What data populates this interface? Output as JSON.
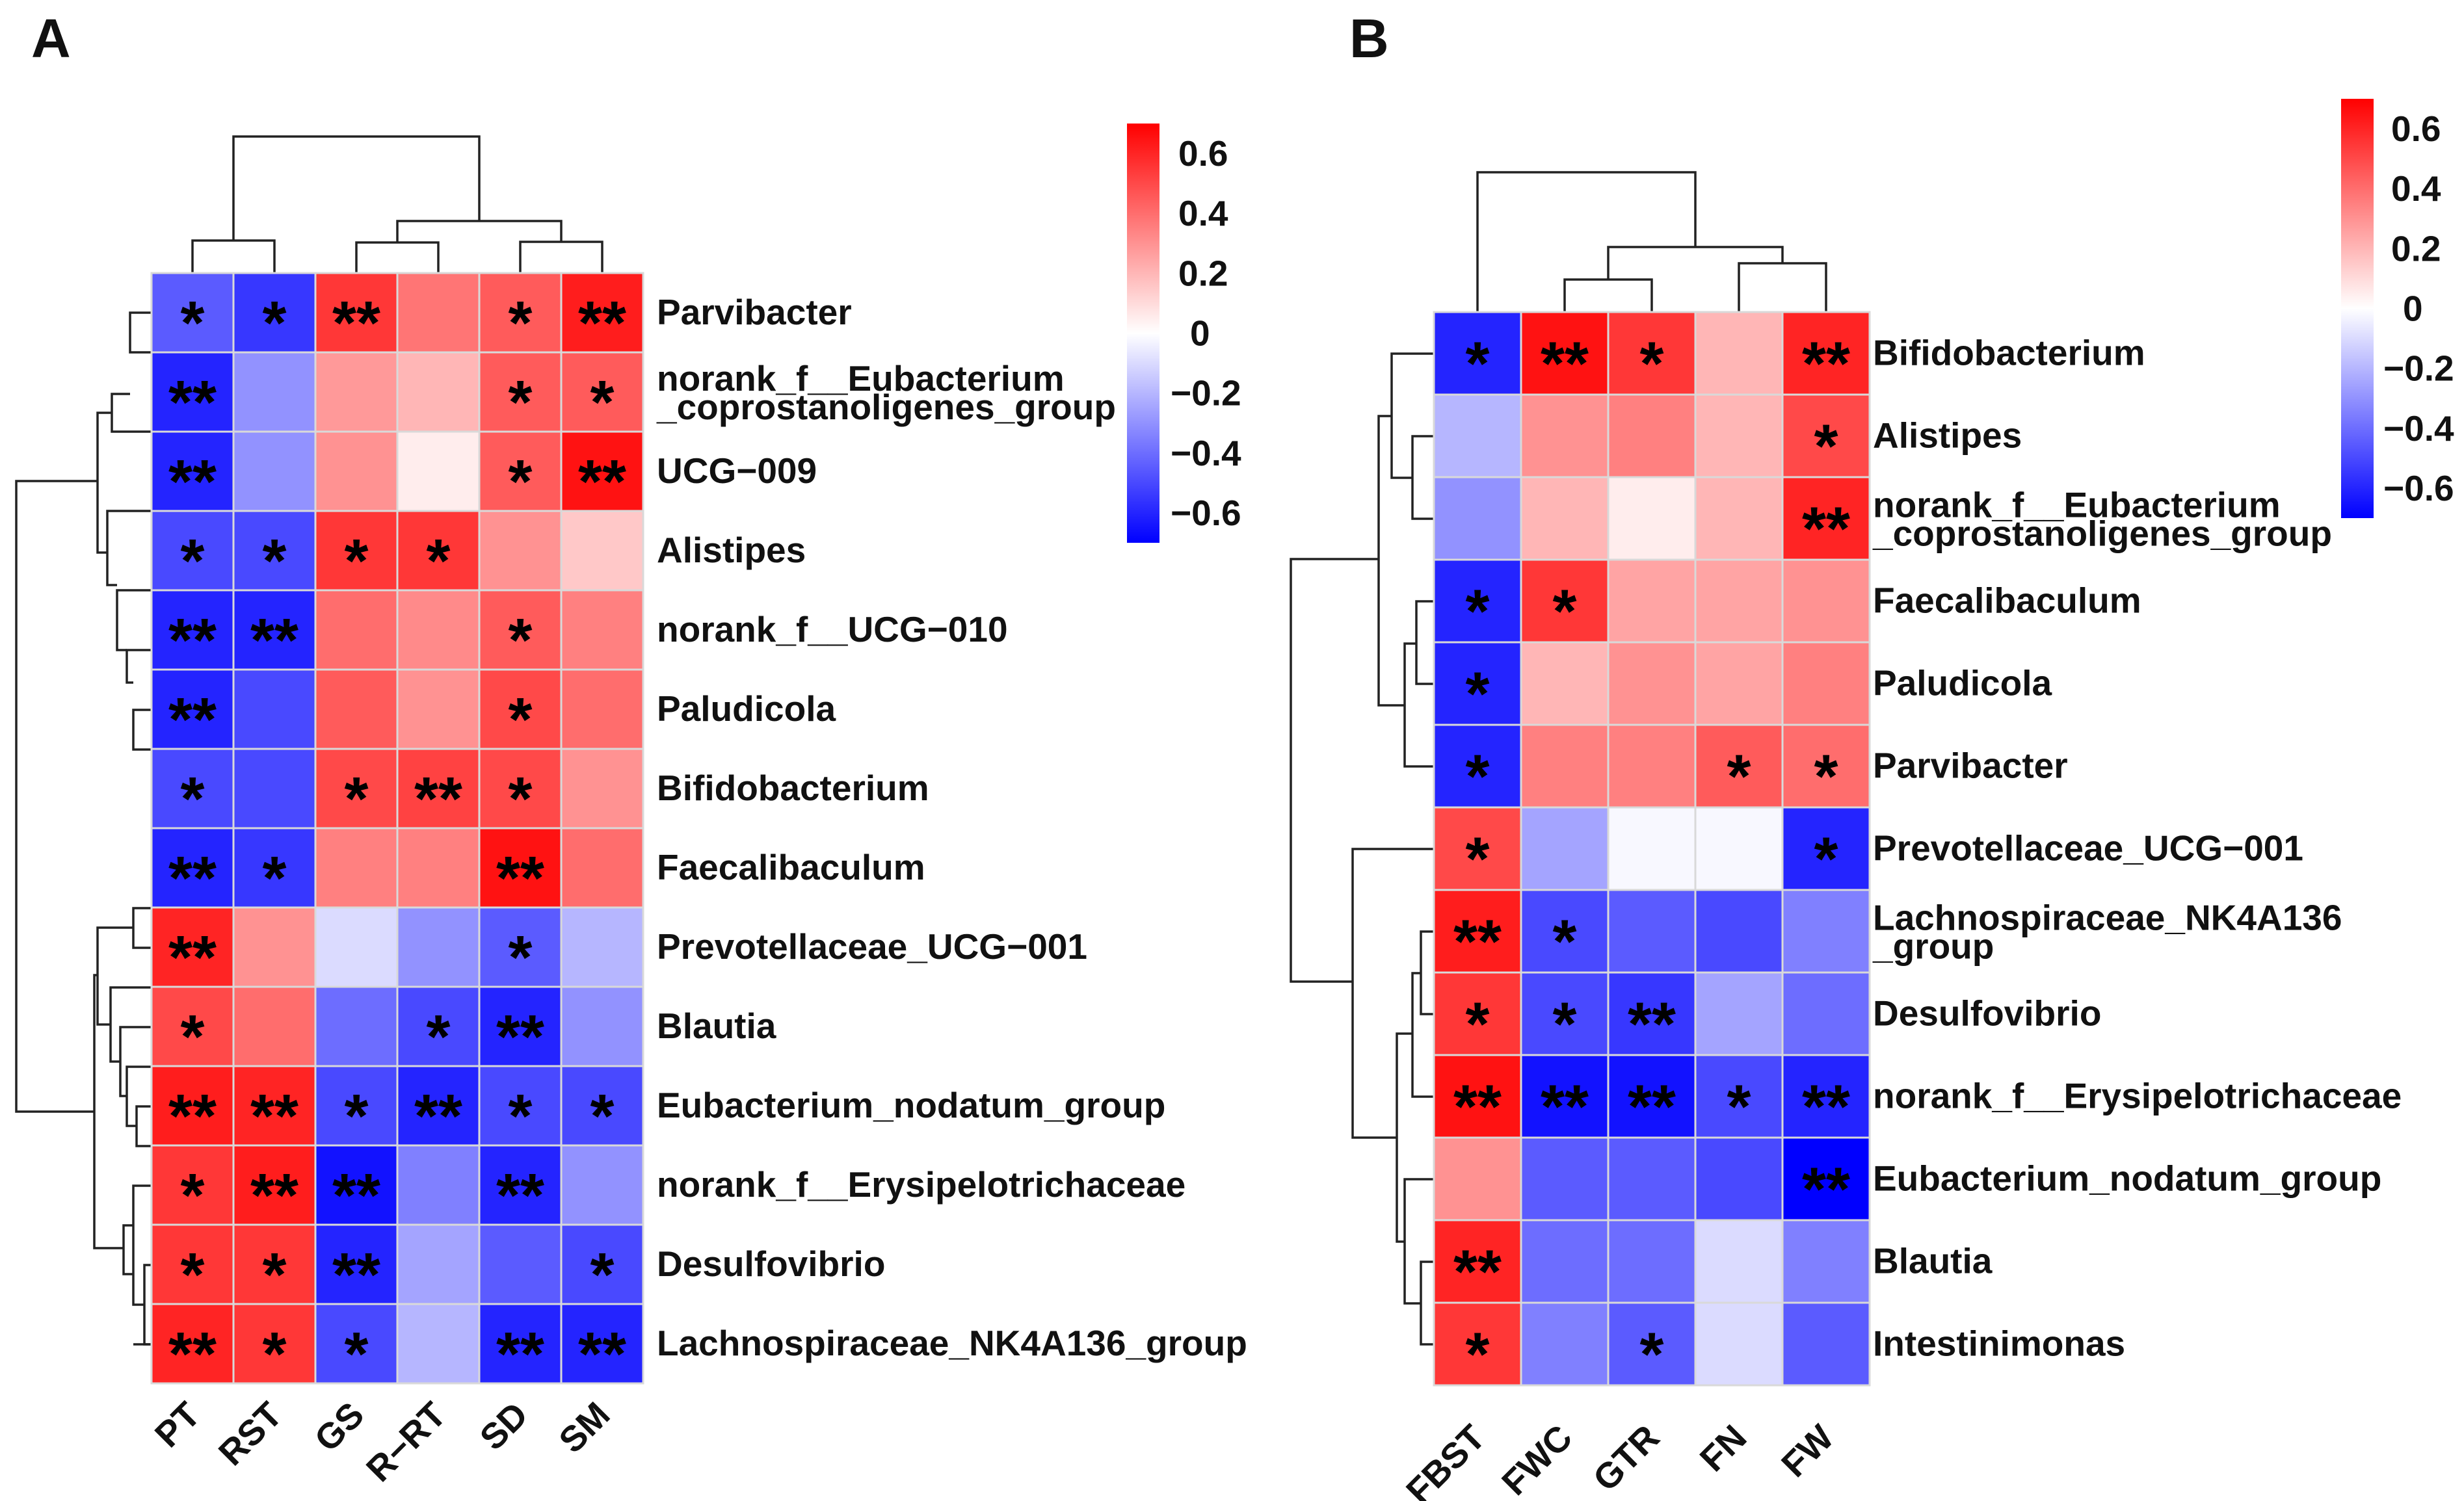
{
  "chart_data": [
    {
      "panel": "A",
      "type": "heatmap",
      "columns": [
        "PT",
        "RST",
        "GS",
        "R-RT",
        "SD",
        "SM"
      ],
      "rows": [
        {
          "label": [
            "Parvibacter"
          ],
          "values": [
            -0.45,
            -0.55,
            0.55,
            0.38,
            0.45,
            0.62
          ],
          "stars": [
            "*",
            "*",
            "**",
            "",
            "*",
            "**"
          ]
        },
        {
          "label": [
            "norank_f__Eubacterium",
            "_coprostanoligenes_group"
          ],
          "values": [
            -0.6,
            -0.3,
            0.28,
            0.2,
            0.45,
            0.45
          ],
          "stars": [
            "**",
            "",
            "",
            "",
            "*",
            "*"
          ]
        },
        {
          "label": [
            "UCG-009"
          ],
          "values": [
            -0.6,
            -0.3,
            0.3,
            0.05,
            0.45,
            0.65
          ],
          "stars": [
            "**",
            "",
            "",
            "",
            "*",
            "**"
          ]
        },
        {
          "label": [
            "Alistipes"
          ],
          "values": [
            -0.5,
            -0.5,
            0.55,
            0.55,
            0.3,
            0.15
          ],
          "stars": [
            "*",
            "*",
            "*",
            "*",
            "",
            ""
          ]
        },
        {
          "label": [
            "norank_f__UCG-010"
          ],
          "values": [
            -0.6,
            -0.6,
            0.4,
            0.32,
            0.45,
            0.35
          ],
          "stars": [
            "**",
            "**",
            "",
            "",
            "*",
            ""
          ]
        },
        {
          "label": [
            "Paludicola"
          ],
          "values": [
            -0.6,
            -0.5,
            0.45,
            0.3,
            0.5,
            0.4
          ],
          "stars": [
            "**",
            "",
            "",
            "",
            "*",
            ""
          ]
        },
        {
          "label": [
            "Bifidobacterium"
          ],
          "values": [
            -0.5,
            -0.5,
            0.5,
            0.52,
            0.5,
            0.3
          ],
          "stars": [
            "*",
            "",
            "*",
            "**",
            "*",
            ""
          ]
        },
        {
          "label": [
            "Faecalibaculum"
          ],
          "values": [
            -0.6,
            -0.55,
            0.35,
            0.35,
            0.65,
            0.4
          ],
          "stars": [
            "**",
            "*",
            "",
            "",
            "**",
            ""
          ]
        },
        {
          "label": [
            "Prevotellaceae_UCG-001"
          ],
          "values": [
            0.6,
            0.3,
            -0.1,
            -0.3,
            -0.45,
            -0.2
          ],
          "stars": [
            "**",
            "",
            "",
            "",
            "*",
            ""
          ]
        },
        {
          "label": [
            "Blautia"
          ],
          "values": [
            0.5,
            0.4,
            -0.4,
            -0.5,
            -0.6,
            -0.3
          ],
          "stars": [
            "*",
            "",
            "",
            "*",
            "**",
            ""
          ]
        },
        {
          "label": [
            "Eubacterium_nodatum_group"
          ],
          "values": [
            0.62,
            0.6,
            -0.5,
            -0.6,
            -0.5,
            -0.5
          ],
          "stars": [
            "**",
            "**",
            "*",
            "**",
            "*",
            "*"
          ]
        },
        {
          "label": [
            "norank_f__Erysipelotrichaceae"
          ],
          "values": [
            0.55,
            0.62,
            -0.65,
            -0.35,
            -0.6,
            -0.3
          ],
          "stars": [
            "*",
            "**",
            "**",
            "",
            "**",
            ""
          ]
        },
        {
          "label": [
            "Desulfovibrio"
          ],
          "values": [
            0.55,
            0.55,
            -0.6,
            -0.25,
            -0.45,
            -0.5
          ],
          "stars": [
            "*",
            "*",
            "**",
            "",
            "",
            "*"
          ]
        },
        {
          "label": [
            "Lachnospiraceae_NK4A136_group"
          ],
          "values": [
            0.6,
            0.55,
            -0.5,
            -0.2,
            -0.6,
            -0.6
          ],
          "stars": [
            "**",
            "*",
            "*",
            "",
            "**",
            "**"
          ]
        }
      ],
      "colorbar": {
        "min": -0.7,
        "max": 0.7,
        "ticks": [
          "0.6",
          "0.4",
          "0.2",
          "0",
          "−0.2",
          "−0.4",
          "−0.6"
        ]
      }
    },
    {
      "panel": "B",
      "type": "heatmap",
      "columns": [
        "FBST",
        "FWC",
        "GTR",
        "FN",
        "FW"
      ],
      "rows": [
        {
          "label": [
            "Bifidobacterium"
          ],
          "values": [
            -0.6,
            0.65,
            0.55,
            0.2,
            0.6
          ],
          "stars": [
            "*",
            "**",
            "*",
            "",
            "**"
          ]
        },
        {
          "label": [
            "Alistipes"
          ],
          "values": [
            -0.2,
            0.3,
            0.35,
            0.2,
            0.5
          ],
          "stars": [
            "",
            "",
            "",
            "",
            "*"
          ]
        },
        {
          "label": [
            "norank_f__Eubacterium",
            "_coprostanoligenes_group"
          ],
          "values": [
            -0.3,
            0.2,
            0.05,
            0.2,
            0.6
          ],
          "stars": [
            "",
            "",
            "",
            "",
            "**"
          ]
        },
        {
          "label": [
            "Faecalibaculum"
          ],
          "values": [
            -0.6,
            0.55,
            0.25,
            0.25,
            0.3
          ],
          "stars": [
            "*",
            "*",
            "",
            "",
            ""
          ]
        },
        {
          "label": [
            "Paludicola"
          ],
          "values": [
            -0.6,
            0.2,
            0.3,
            0.25,
            0.35
          ],
          "stars": [
            "*",
            "",
            "",
            "",
            ""
          ]
        },
        {
          "label": [
            "Parvibacter"
          ],
          "values": [
            -0.6,
            0.35,
            0.35,
            0.45,
            0.4
          ],
          "stars": [
            "*",
            "",
            "",
            "*",
            "*"
          ]
        },
        {
          "label": [
            "Prevotellaceae_UCG-001"
          ],
          "values": [
            0.5,
            -0.25,
            -0.02,
            -0.02,
            -0.6
          ],
          "stars": [
            "*",
            "",
            "",
            "",
            "*"
          ]
        },
        {
          "label": [
            "Lachnospiraceae_NK4A136",
            "_group"
          ],
          "values": [
            0.62,
            -0.5,
            -0.45,
            -0.5,
            -0.35
          ],
          "stars": [
            "**",
            "*",
            "",
            "",
            ""
          ]
        },
        {
          "label": [
            "Desulfovibrio"
          ],
          "values": [
            0.55,
            -0.5,
            -0.55,
            -0.25,
            -0.4
          ],
          "stars": [
            "*",
            "*",
            "**",
            "",
            ""
          ]
        },
        {
          "label": [
            "norank_f__Erysipelotrichaceae"
          ],
          "values": [
            0.65,
            -0.65,
            -0.65,
            -0.5,
            -0.6
          ],
          "stars": [
            "**",
            "**",
            "**",
            "*",
            "**"
          ]
        },
        {
          "label": [
            "Eubacterium_nodatum_group"
          ],
          "values": [
            0.3,
            -0.45,
            -0.45,
            -0.5,
            -0.7
          ],
          "stars": [
            "",
            "",
            "",
            "",
            "**"
          ]
        },
        {
          "label": [
            "Blautia"
          ],
          "values": [
            0.6,
            -0.4,
            -0.4,
            -0.1,
            -0.35
          ],
          "stars": [
            "**",
            "",
            "",
            "",
            ""
          ]
        },
        {
          "label": [
            "Intestinimonas"
          ],
          "values": [
            0.55,
            -0.35,
            -0.45,
            -0.1,
            -0.45
          ],
          "stars": [
            "*",
            "",
            "*",
            "",
            ""
          ]
        }
      ],
      "colorbar": {
        "min": -0.7,
        "max": 0.7,
        "ticks": [
          "0.6",
          "0.4",
          "0.2",
          "0",
          "−0.2",
          "−0.4",
          "−0.6"
        ]
      }
    }
  ]
}
